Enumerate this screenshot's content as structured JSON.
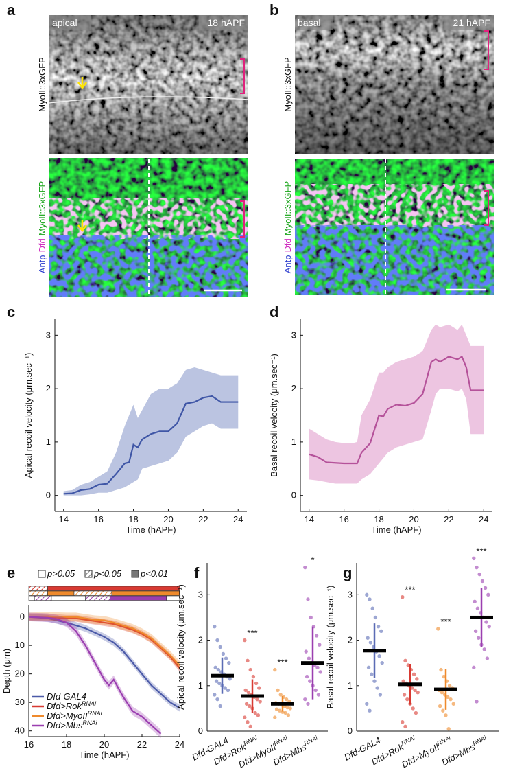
{
  "images": [
    {
      "label": "a",
      "left_tag": "apical",
      "right_tag": "18 hAPF",
      "top_channel": "MyoII::3xGFP",
      "bottom_channels": [
        "Antp",
        "Dfd",
        "MyoII::3xGFP"
      ]
    },
    {
      "label": "b",
      "left_tag": "basal",
      "right_tag": "21 hAPF",
      "top_channel": "MyoII::3xGFP",
      "bottom_channels": [
        "Antp",
        "Dfd",
        "MyoII::3xGFP"
      ]
    }
  ],
  "chart_data": [
    {
      "label": "c",
      "type": "band_line",
      "xlabel": "Time (hAPF)",
      "ylabel": "Apical recoil velocity (μm.sec⁻¹)",
      "xlim": [
        13.5,
        24.5
      ],
      "ylim": [
        -0.3,
        3.3
      ],
      "xticks": [
        14,
        16,
        18,
        20,
        22,
        24
      ],
      "yticks": [
        0,
        1,
        2,
        3
      ],
      "color": "#3f56a6",
      "band_color": "#aab5da",
      "x": [
        14,
        14.5,
        15,
        15.5,
        16,
        16.5,
        17,
        17.5,
        17.75,
        18,
        18.25,
        18.5,
        19,
        19.5,
        20,
        20.5,
        21,
        21.5,
        22,
        22.5,
        23,
        23.5,
        24
      ],
      "values": [
        0.03,
        0.04,
        0.1,
        0.12,
        0.2,
        0.22,
        0.4,
        0.6,
        0.62,
        0.95,
        0.9,
        1.05,
        1.15,
        1.2,
        1.2,
        1.35,
        1.72,
        1.75,
        1.83,
        1.86,
        1.75,
        1.75,
        1.75
      ],
      "upper": [
        0.08,
        0.1,
        0.2,
        0.25,
        0.35,
        0.45,
        0.8,
        1.3,
        1.5,
        1.7,
        1.45,
        1.6,
        1.9,
        2.0,
        2.0,
        2.1,
        2.35,
        2.4,
        2.35,
        2.3,
        2.25,
        2.25,
        2.25
      ],
      "lower": [
        0,
        0,
        0,
        0.02,
        0.05,
        0.05,
        0.1,
        0.15,
        0.2,
        0.25,
        0.3,
        0.5,
        0.55,
        0.6,
        0.65,
        0.8,
        1.1,
        1.2,
        1.3,
        1.35,
        1.25,
        1.25,
        1.25
      ]
    },
    {
      "label": "d",
      "type": "band_line",
      "xlabel": "Time (hAPF)",
      "ylabel": "Basal recoil velocity (μm.sec⁻¹)",
      "xlim": [
        13.5,
        24.5
      ],
      "ylim": [
        -0.3,
        3.3
      ],
      "xticks": [
        14,
        16,
        18,
        20,
        22,
        24
      ],
      "yticks": [
        0,
        1,
        2,
        3
      ],
      "color": "#b5529a",
      "band_color": "#e9b6d9",
      "x": [
        14,
        14.5,
        15,
        15.5,
        16,
        16.5,
        16.75,
        17,
        17.5,
        18,
        18.25,
        18.5,
        19,
        19.5,
        20,
        20.5,
        21,
        21.25,
        21.5,
        22,
        22.5,
        22.75,
        23,
        23.25,
        24
      ],
      "values": [
        0.77,
        0.72,
        0.62,
        0.61,
        0.6,
        0.6,
        0.6,
        0.8,
        0.98,
        1.5,
        1.48,
        1.62,
        1.7,
        1.68,
        1.73,
        1.9,
        2.5,
        2.55,
        2.5,
        2.6,
        2.55,
        2.6,
        2.4,
        1.97,
        1.97
      ],
      "upper": [
        1.25,
        1.15,
        1.05,
        1.0,
        0.98,
        0.98,
        1.0,
        1.5,
        1.8,
        2.3,
        2.3,
        2.4,
        2.5,
        2.55,
        2.6,
        2.7,
        3.1,
        3.2,
        3.15,
        3.2,
        3.1,
        3.2,
        3.0,
        2.8,
        2.8
      ],
      "lower": [
        0.3,
        0.28,
        0.25,
        0.22,
        0.22,
        0.22,
        0.22,
        0.3,
        0.4,
        0.6,
        0.7,
        0.8,
        0.9,
        0.95,
        1.0,
        1.05,
        1.6,
        1.9,
        2.0,
        2.0,
        1.95,
        2.0,
        1.8,
        1.15,
        1.15
      ]
    },
    {
      "label": "e",
      "type": "multi_line",
      "xlabel": "Time (hAPF)",
      "ylabel": "Depth (μm)",
      "xlim": [
        16,
        24
      ],
      "ylim": [
        -4,
        42
      ],
      "y_inverted": true,
      "xticks": [
        16,
        18,
        20,
        22,
        24
      ],
      "yticks": [
        0,
        10,
        20,
        30,
        40
      ],
      "legend": "lower left",
      "significance_legend": [
        "p>0.05",
        "p<0.05",
        "p<0.01"
      ],
      "significance_rows": [
        {
          "color": "#d83a32",
          "segments": [
            {
              "from": 16,
              "to": 17,
              "level": 1
            },
            {
              "from": 17,
              "to": 24,
              "level": 2
            }
          ]
        },
        {
          "color": "#ef8a2c",
          "segments": [
            {
              "from": 16,
              "to": 17,
              "level": 1
            },
            {
              "from": 17,
              "to": 18.4,
              "level": 2
            },
            {
              "from": 18.4,
              "to": 20.4,
              "level": 1
            },
            {
              "from": 20.4,
              "to": 24,
              "level": 2
            }
          ]
        },
        {
          "color": "#9b3fb0",
          "segments": [
            {
              "from": 16,
              "to": 16.3,
              "level": 0
            },
            {
              "from": 16.3,
              "to": 17.2,
              "level": 1
            },
            {
              "from": 17.2,
              "to": 19,
              "level": 0
            },
            {
              "from": 19,
              "to": 20.3,
              "level": 1
            },
            {
              "from": 20.3,
              "to": 23.3,
              "level": 2
            },
            {
              "from": 23.3,
              "to": 24,
              "level": 0
            }
          ]
        }
      ],
      "series": [
        {
          "name": "Dfd-GAL4",
          "name_sup": null,
          "color": "#4b5aa8",
          "band": 1.2,
          "x": [
            16,
            17,
            18,
            18.5,
            19,
            19.5,
            20,
            20.5,
            21,
            21.5,
            22,
            22.5,
            23,
            23.5,
            24
          ],
          "values": [
            0,
            0.5,
            2,
            3,
            4,
            5.5,
            7,
            9,
            12,
            16,
            20,
            24,
            27,
            30,
            32
          ]
        },
        {
          "name": "Dfd>Rok",
          "name_sup": "RNAi",
          "color": "#d83a32",
          "band": 1.2,
          "x": [
            16,
            17,
            18,
            18.5,
            19,
            19.5,
            20,
            20.5,
            21,
            21.5,
            22,
            22.5,
            23,
            23.5,
            24
          ],
          "values": [
            0,
            0,
            0.5,
            0.5,
            1,
            1.5,
            2,
            2.5,
            3.5,
            4.5,
            6,
            8,
            11,
            14,
            18
          ]
        },
        {
          "name": "Dfd>MyoII",
          "name_sup": "RNAi",
          "color": "#ef8a2c",
          "band": 1.5,
          "x": [
            16,
            17,
            18,
            18.5,
            19,
            19.5,
            20,
            20.5,
            21,
            21.5,
            22,
            22.5,
            23,
            23.5,
            24
          ],
          "values": [
            0,
            -0.2,
            0,
            0,
            0.5,
            1,
            1.2,
            2,
            3,
            4,
            5.5,
            7.5,
            10.5,
            13.5,
            17
          ]
        },
        {
          "name": "Dfd>Mbs",
          "name_sup": "RNAi",
          "color": "#9b3fb0",
          "band": 1.5,
          "x": [
            16,
            17,
            17.5,
            18,
            18.5,
            19,
            19.5,
            20,
            20.25,
            20.5,
            21,
            21.5,
            22,
            22.5,
            23
          ],
          "values": [
            0,
            0.3,
            0.8,
            2,
            5,
            10,
            16,
            22,
            24,
            22,
            28,
            33,
            35,
            38,
            41
          ]
        }
      ]
    },
    {
      "label": "f",
      "type": "strip",
      "ylabel": "Apical recoil velocity (μm.sec⁻¹)",
      "ylim": [
        0,
        3.7
      ],
      "yticks": [
        0,
        1,
        2,
        3
      ],
      "categories": [
        "Dfd-GAL4",
        "Dfd>Rok",
        "Dfd>MyoII",
        "Dfd>Mbs"
      ],
      "category_superscripts": [
        null,
        "RNAi",
        "RNAi",
        "RNAi"
      ],
      "colors": [
        "#5b6cb5",
        "#d83a32",
        "#ef8a2c",
        "#9b3fb0"
      ],
      "means": [
        1.22,
        0.77,
        0.6,
        1.5
      ],
      "sd": [
        0.4,
        0.37,
        0.17,
        0.8
      ],
      "annotations": [
        null,
        "***",
        "***",
        "*"
      ],
      "points": [
        [
          2.3,
          2.0,
          1.85,
          1.7,
          1.6,
          1.5,
          1.4,
          1.35,
          1.3,
          1.25,
          1.2,
          1.15,
          1.1,
          1.05,
          1.0,
          0.95,
          0.9,
          0.8,
          0.7,
          0.55
        ],
        [
          2.0,
          1.55,
          1.35,
          1.2,
          1.05,
          0.95,
          0.9,
          0.85,
          0.8,
          0.75,
          0.7,
          0.65,
          0.6,
          0.55,
          0.5,
          0.4,
          0.35,
          0.3,
          0.2,
          0.1
        ],
        [
          1.35,
          0.9,
          0.8,
          0.75,
          0.7,
          0.65,
          0.62,
          0.6,
          0.58,
          0.55,
          0.52,
          0.5,
          0.48,
          0.45,
          0.42,
          0.4,
          0.35,
          0.3
        ],
        [
          3.6,
          2.9,
          2.5,
          2.3,
          2.1,
          1.9,
          1.75,
          1.6,
          1.5,
          1.45,
          1.4,
          1.3,
          1.2,
          1.1,
          1.0,
          0.9,
          0.8,
          0.7,
          0.6
        ]
      ]
    },
    {
      "label": "g",
      "type": "strip",
      "ylabel": "Basal recoil velocity (μm.sec⁻¹)",
      "ylim": [
        0,
        3.7
      ],
      "yticks": [
        0,
        1,
        2,
        3
      ],
      "categories": [
        "Dfd-GAL4",
        "Dfd>Rok",
        "Dfd>MyoII",
        "Dfd>Mbs"
      ],
      "category_superscripts": [
        null,
        "RNAi",
        "RNAi",
        "RNAi"
      ],
      "colors": [
        "#5b6cb5",
        "#d83a32",
        "#ef8a2c",
        "#9b3fb0"
      ],
      "means": [
        1.77,
        1.03,
        0.92,
        2.5
      ],
      "sd": [
        0.6,
        0.45,
        0.45,
        0.65
      ],
      "annotations": [
        null,
        "***",
        "***",
        "***"
      ],
      "points": [
        [
          3.0,
          2.9,
          2.7,
          2.5,
          2.3,
          2.2,
          2.05,
          1.95,
          1.85,
          1.75,
          1.65,
          1.5,
          1.4,
          1.25,
          1.1,
          0.95,
          0.8,
          0.6,
          0.45
        ],
        [
          2.95,
          1.55,
          1.45,
          1.35,
          1.25,
          1.15,
          1.1,
          1.05,
          1.0,
          0.95,
          0.9,
          0.85,
          0.8,
          0.7,
          0.6,
          0.5,
          0.4,
          0.2,
          0.1
        ],
        [
          2.25,
          1.35,
          1.2,
          1.1,
          1.0,
          0.95,
          0.9,
          0.85,
          0.8,
          0.75,
          0.7,
          0.6,
          0.55,
          0.45,
          0.35,
          0.05
        ],
        [
          3.8,
          3.6,
          3.45,
          3.3,
          3.15,
          3.0,
          2.85,
          2.7,
          2.6,
          2.5,
          2.4,
          2.3,
          2.2,
          2.05,
          1.9,
          1.8,
          1.6,
          1.4,
          0.65
        ]
      ]
    }
  ]
}
